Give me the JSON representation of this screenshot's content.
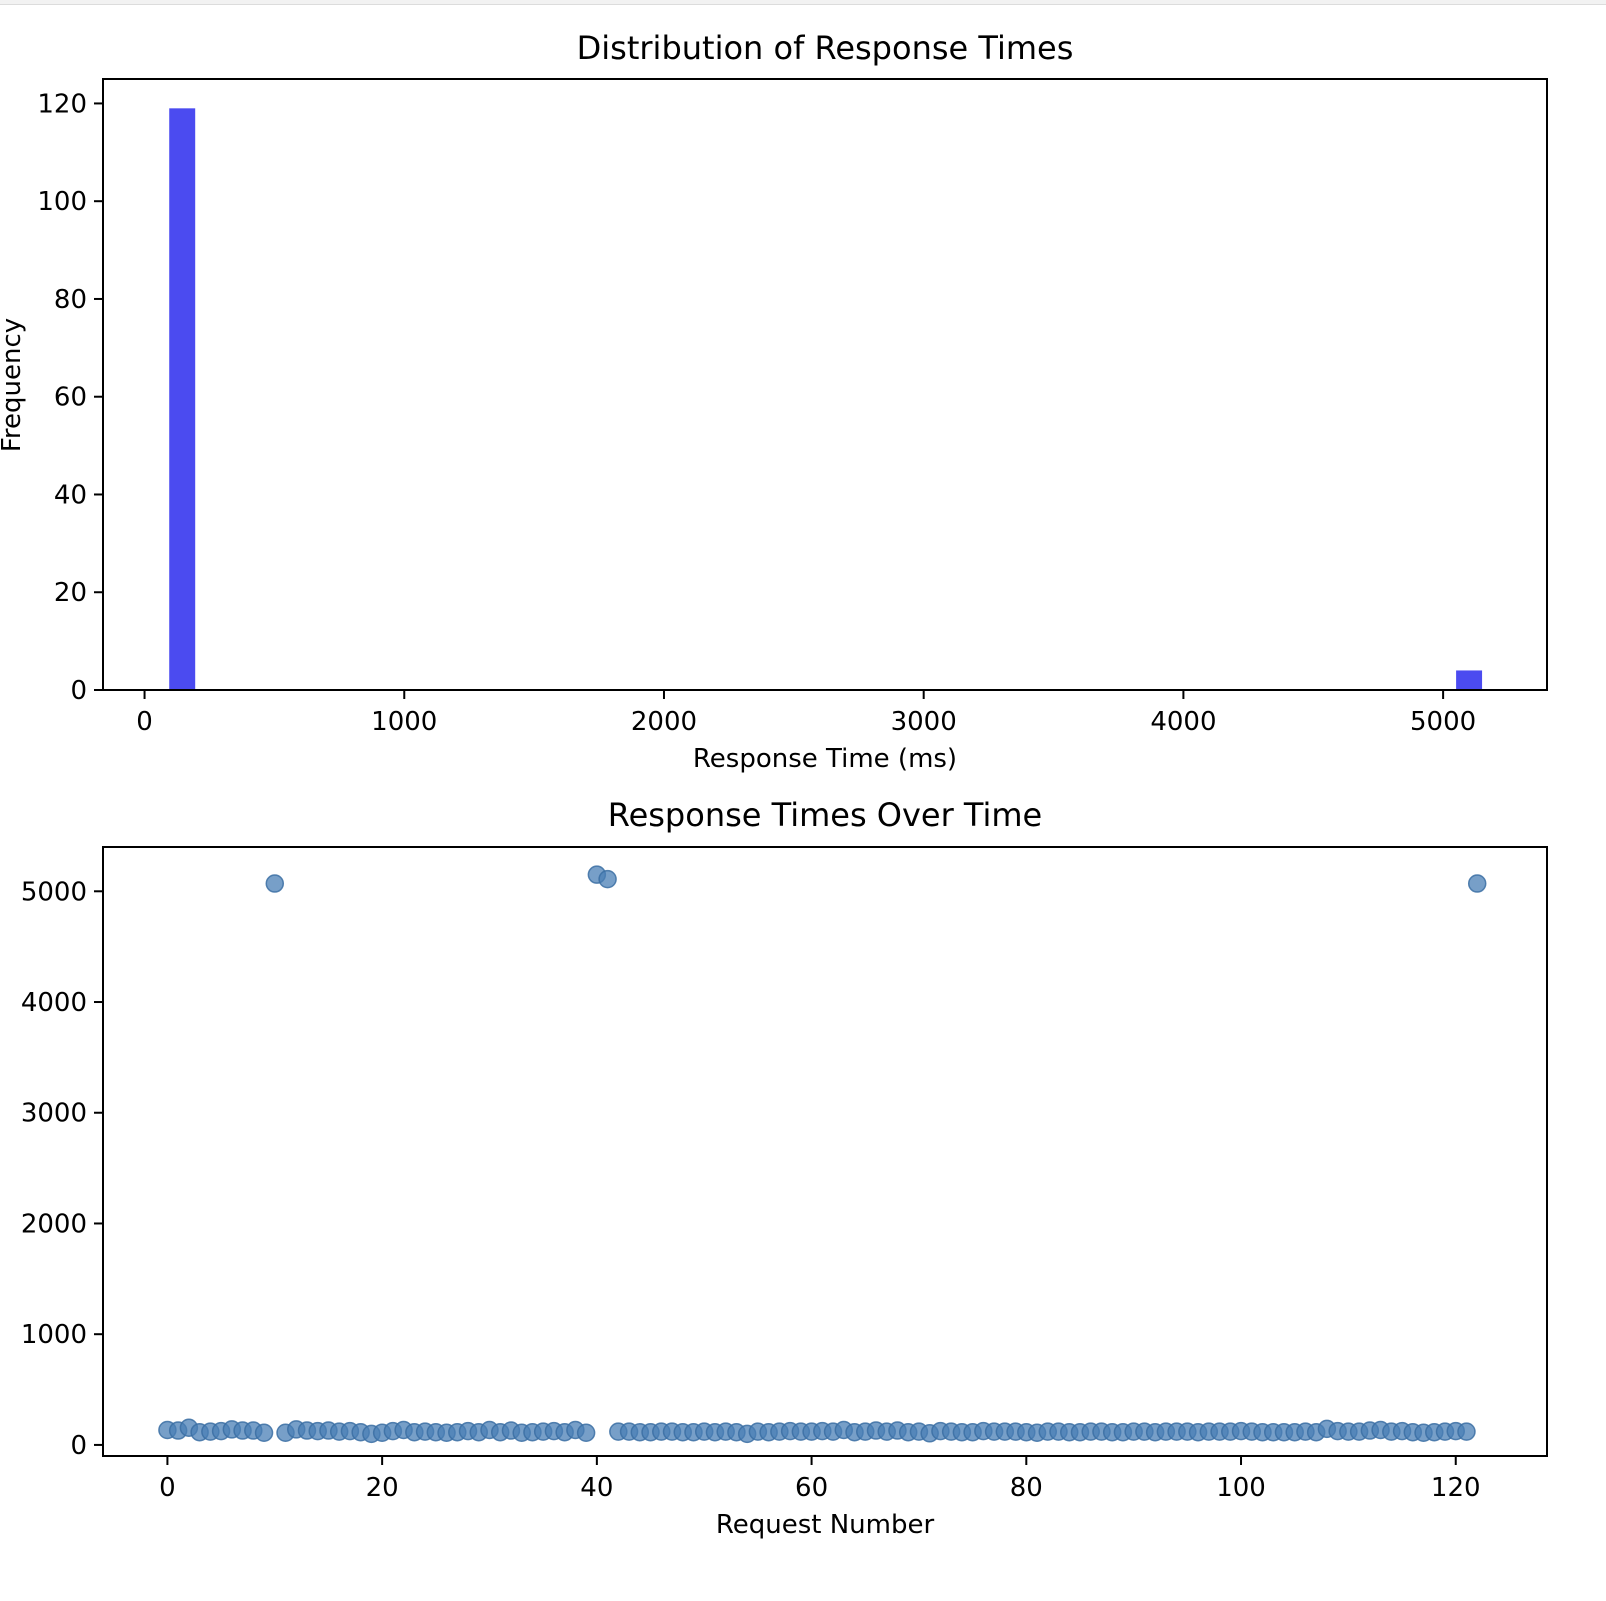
{
  "chart_data": [
    {
      "type": "bar",
      "title": "Distribution of Response Times",
      "xlabel": "Response Time (ms)",
      "ylabel": "Frequency",
      "xlim": [
        -160,
        5400
      ],
      "ylim": [
        0,
        125
      ],
      "xticks": [
        0,
        1000,
        2000,
        3000,
        4000,
        5000
      ],
      "yticks": [
        0,
        20,
        40,
        60,
        80,
        100,
        120
      ],
      "bin_width": 100,
      "bars": [
        {
          "x0": 95,
          "x1": 195,
          "value": 119
        },
        {
          "x0": 5050,
          "x1": 5150,
          "value": 4
        }
      ],
      "color": "#4b4bf0",
      "grid": false,
      "legend": "none"
    },
    {
      "type": "scatter",
      "title": "Response Times Over Time",
      "xlabel": "Request Number",
      "ylabel": "",
      "xlim": [
        -6,
        128.5
      ],
      "ylim": [
        -100,
        5400
      ],
      "xticks": [
        0,
        20,
        40,
        60,
        80,
        100,
        120
      ],
      "yticks": [
        0,
        1000,
        2000,
        3000,
        4000,
        5000
      ],
      "color": "#4a7fb5",
      "grid": false,
      "legend": "none",
      "x": [
        0,
        1,
        2,
        3,
        4,
        5,
        6,
        7,
        8,
        9,
        10,
        11,
        12,
        13,
        14,
        15,
        16,
        17,
        18,
        19,
        20,
        21,
        22,
        23,
        24,
        25,
        26,
        27,
        28,
        29,
        30,
        31,
        32,
        33,
        34,
        35,
        36,
        37,
        38,
        39,
        40,
        41,
        42,
        43,
        44,
        45,
        46,
        47,
        48,
        49,
        50,
        51,
        52,
        53,
        54,
        55,
        56,
        57,
        58,
        59,
        60,
        61,
        62,
        63,
        64,
        65,
        66,
        67,
        68,
        69,
        70,
        71,
        72,
        73,
        74,
        75,
        76,
        77,
        78,
        79,
        80,
        81,
        82,
        83,
        84,
        85,
        86,
        87,
        88,
        89,
        90,
        91,
        92,
        93,
        94,
        95,
        96,
        97,
        98,
        99,
        100,
        101,
        102,
        103,
        104,
        105,
        106,
        107,
        108,
        109,
        110,
        111,
        112,
        113,
        114,
        115,
        116,
        117,
        118,
        119,
        120,
        121,
        122
      ],
      "y": [
        135,
        130,
        155,
        115,
        120,
        125,
        140,
        130,
        130,
        110,
        5070,
        110,
        140,
        130,
        125,
        130,
        120,
        125,
        115,
        100,
        110,
        125,
        135,
        115,
        120,
        115,
        110,
        115,
        125,
        115,
        135,
        115,
        130,
        110,
        115,
        120,
        125,
        115,
        135,
        110,
        5150,
        5110,
        120,
        120,
        115,
        115,
        120,
        120,
        115,
        115,
        120,
        115,
        120,
        115,
        100,
        120,
        115,
        120,
        125,
        120,
        120,
        125,
        120,
        135,
        115,
        120,
        130,
        120,
        130,
        115,
        120,
        105,
        125,
        120,
        115,
        115,
        125,
        120,
        120,
        120,
        115,
        110,
        120,
        120,
        115,
        115,
        120,
        120,
        115,
        115,
        120,
        120,
        115,
        120,
        120,
        120,
        115,
        120,
        120,
        120,
        125,
        120,
        115,
        115,
        115,
        115,
        120,
        115,
        145,
        125,
        120,
        120,
        130,
        135,
        120,
        125,
        115,
        110,
        115,
        120,
        125,
        120,
        5070
      ]
    }
  ]
}
